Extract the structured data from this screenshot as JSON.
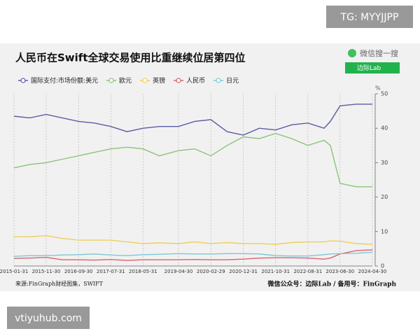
{
  "watermarks": {
    "top": "TG: MYYJJPP",
    "bottom": "vtiyuhub.com"
  },
  "chart_data": {
    "type": "line",
    "title": "人民币在Swift全球交易使用比重继续位居第四位",
    "search_label": "微信搜一搜",
    "search_box_text": "边际Lab",
    "source": "来源:FinGraph财经图集，SWIFT",
    "credit": "微信公众号：边际Lab / 备用号：FinGraph",
    "y_unit": "%",
    "x": [
      "2015-01-31",
      "2015-06-30",
      "2015-11-30",
      "2016-04-30",
      "2016-09-30",
      "2017-02-28",
      "2017-07-31",
      "2017-12-31",
      "2018-05-31",
      "2018-10-31",
      "2019-04-30",
      "2019-09-30",
      "2020-02-29",
      "2020-07-31",
      "2020-12-31",
      "2021-05-31",
      "2021-10-31",
      "2022-03-31",
      "2022-08-31",
      "2023-01-31",
      "2023-03-31",
      "2023-06-30",
      "2023-11-30",
      "2024-04-30"
    ],
    "xticks": [
      "2015-01-31",
      "2015-11-30",
      "2016-09-30",
      "2017-07-31",
      "2018-05-31",
      "2019-04-30",
      "2020-02-29",
      "2020-12-31",
      "2021-10-31",
      "2022-08-31",
      "2023-06-30",
      "2024-04-30"
    ],
    "ylim": [
      0,
      50
    ],
    "yticks": [
      0,
      10,
      20,
      30,
      40,
      50
    ],
    "grid": true,
    "series": [
      {
        "name": "国际支付:市场份额:美元",
        "color": "#5b5ca6",
        "values": [
          43.5,
          43,
          44,
          43,
          42,
          41.5,
          40.5,
          39,
          40,
          40.5,
          40.5,
          42,
          42.5,
          39,
          38,
          40,
          39.5,
          41,
          41.5,
          40,
          42,
          46.5,
          47,
          47
        ]
      },
      {
        "name": "欧元",
        "color": "#8dc27a",
        "values": [
          28.5,
          29.5,
          30,
          31,
          32,
          33,
          34,
          34.5,
          34,
          32,
          33.5,
          34,
          32,
          35,
          37.5,
          37,
          38.5,
          37,
          35,
          36.5,
          35,
          24,
          23,
          23
        ]
      },
      {
        "name": "英镑",
        "color": "#efcf5c",
        "values": [
          8.5,
          8.5,
          8.8,
          8,
          7.5,
          7.5,
          7.5,
          7,
          6.5,
          6.7,
          6.5,
          7,
          6.5,
          6.8,
          6.5,
          6.5,
          6.3,
          6.8,
          7,
          7,
          7.3,
          7.2,
          6.5,
          6.3
        ]
      },
      {
        "name": "人民币",
        "color": "#d9636d",
        "values": [
          2.2,
          2.3,
          2.5,
          1.8,
          1.8,
          1.7,
          1.9,
          1.6,
          1.8,
          1.8,
          1.8,
          1.9,
          1.8,
          1.8,
          2,
          2.3,
          2.4,
          2.4,
          2.3,
          2,
          2.3,
          3.5,
          4.5,
          4.7
        ]
      },
      {
        "name": "日元",
        "color": "#7cc7d8",
        "values": [
          2.8,
          3,
          3,
          3.2,
          3.3,
          3.5,
          3.2,
          3,
          3.3,
          3.4,
          3.6,
          3.5,
          3.5,
          3.6,
          3.6,
          3.5,
          3,
          2.9,
          2.9,
          3.3,
          3.5,
          3.6,
          3.7,
          4
        ]
      }
    ]
  }
}
